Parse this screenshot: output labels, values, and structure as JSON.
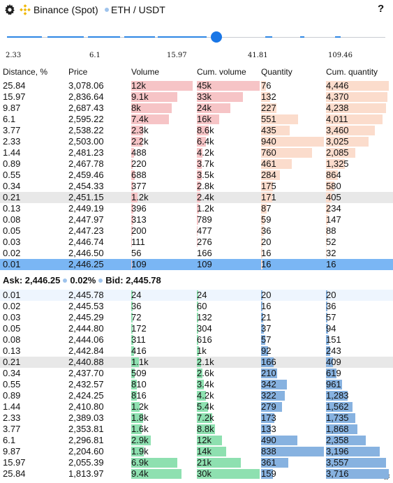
{
  "header": {
    "exchange": "Binance (Spot)",
    "pair": "ETH / USDT",
    "help": "?"
  },
  "slider": {
    "value_fraction": 0.55,
    "ticks": [
      "2.33",
      "6.1",
      "15.97",
      "41.81",
      "109.46"
    ]
  },
  "columns": [
    "Distance, %",
    "Price",
    "Volume",
    "Cum. volume",
    "Quantity",
    "Cum. quantity"
  ],
  "asks": [
    {
      "d": "25.84",
      "p": "3,078.06",
      "v": "12k",
      "cv": "45k",
      "q": "76",
      "cq": "4,446",
      "vf": 0.98,
      "cvf": 1.0,
      "qf": 0.08,
      "cqf": 1.0
    },
    {
      "d": "15.97",
      "p": "2,836.64",
      "v": "9.1k",
      "cv": "33k",
      "q": "132",
      "cq": "4,370",
      "vf": 0.73,
      "cvf": 0.73,
      "qf": 0.14,
      "cqf": 0.98
    },
    {
      "d": "9.87",
      "p": "2,687.43",
      "v": "8k",
      "cv": "24k",
      "q": "227",
      "cq": "4,238",
      "vf": 0.64,
      "cvf": 0.53,
      "qf": 0.24,
      "cqf": 0.95
    },
    {
      "d": "6.1",
      "p": "2,595.22",
      "v": "7.4k",
      "cv": "16k",
      "q": "551",
      "cq": "4,011",
      "vf": 0.6,
      "cvf": 0.36,
      "qf": 0.59,
      "cqf": 0.9
    },
    {
      "d": "3.77",
      "p": "2,538.22",
      "v": "2.3k",
      "cv": "8.6k",
      "q": "435",
      "cq": "3,460",
      "vf": 0.19,
      "cvf": 0.19,
      "qf": 0.46,
      "cqf": 0.78
    },
    {
      "d": "2.33",
      "p": "2,503.00",
      "v": "2.2k",
      "cv": "6.4k",
      "q": "940",
      "cq": "3,025",
      "vf": 0.18,
      "cvf": 0.14,
      "qf": 1.0,
      "cqf": 0.68
    },
    {
      "d": "1.44",
      "p": "2,481.23",
      "v": "488",
      "cv": "4.2k",
      "q": "760",
      "cq": "2,085",
      "vf": 0.04,
      "cvf": 0.09,
      "qf": 0.81,
      "cqf": 0.47
    },
    {
      "d": "0.89",
      "p": "2,467.78",
      "v": "220",
      "cv": "3.7k",
      "q": "461",
      "cq": "1,325",
      "vf": 0.02,
      "cvf": 0.08,
      "qf": 0.49,
      "cqf": 0.3
    },
    {
      "d": "0.55",
      "p": "2,459.46",
      "v": "688",
      "cv": "3.5k",
      "q": "284",
      "cq": "864",
      "vf": 0.06,
      "cvf": 0.08,
      "qf": 0.3,
      "cqf": 0.19
    },
    {
      "d": "0.34",
      "p": "2,454.33",
      "v": "377",
      "cv": "2.8k",
      "q": "175",
      "cq": "580",
      "vf": 0.03,
      "cvf": 0.06,
      "qf": 0.19,
      "cqf": 0.13
    },
    {
      "d": "0.21",
      "p": "2,451.15",
      "v": "1.2k",
      "cv": "2.4k",
      "q": "171",
      "cq": "405",
      "vf": 0.1,
      "cvf": 0.05,
      "qf": 0.18,
      "cqf": 0.09,
      "hl": true
    },
    {
      "d": "0.13",
      "p": "2,449.19",
      "v": "396",
      "cv": "1.2k",
      "q": "87",
      "cq": "234",
      "vf": 0.03,
      "cvf": 0.03,
      "qf": 0.09,
      "cqf": 0.05
    },
    {
      "d": "0.08",
      "p": "2,447.97",
      "v": "313",
      "cv": "789",
      "q": "59",
      "cq": "147",
      "vf": 0.03,
      "cvf": 0.02,
      "qf": 0.06,
      "cqf": 0.03
    },
    {
      "d": "0.05",
      "p": "2,447.23",
      "v": "200",
      "cv": "477",
      "q": "36",
      "cq": "88",
      "vf": 0.02,
      "cvf": 0.01,
      "qf": 0.04,
      "cqf": 0.02
    },
    {
      "d": "0.03",
      "p": "2,446.74",
      "v": "111",
      "cv": "276",
      "q": "20",
      "cq": "52",
      "vf": 0.01,
      "cvf": 0.01,
      "qf": 0.02,
      "cqf": 0.01
    },
    {
      "d": "0.02",
      "p": "2,446.50",
      "v": "56",
      "cv": "166",
      "q": "16",
      "cq": "32",
      "vf": 0.0,
      "cvf": 0.0,
      "qf": 0.02,
      "cqf": 0.01
    },
    {
      "d": "0.01",
      "p": "2,446.25",
      "v": "109",
      "cv": "109",
      "q": "16",
      "cq": "16",
      "vf": 0.01,
      "cvf": 0.0,
      "qf": 0.02,
      "cqf": 0.0,
      "sel": true
    }
  ],
  "spread": {
    "ask_label": "Ask: 2,446.25",
    "pct": "0.02%",
    "bid_label": "Bid: 2,445.78"
  },
  "bids": [
    {
      "d": "0.01",
      "p": "2,445.78",
      "v": "24",
      "cv": "24",
      "q": "20",
      "cq": "20",
      "vf": 0.0,
      "cvf": 0.0,
      "qf": 0.02,
      "cqf": 0.01,
      "first": true
    },
    {
      "d": "0.02",
      "p": "2,445.53",
      "v": "36",
      "cv": "60",
      "q": "16",
      "cq": "36",
      "vf": 0.0,
      "cvf": 0.0,
      "qf": 0.02,
      "cqf": 0.01
    },
    {
      "d": "0.03",
      "p": "2,445.29",
      "v": "72",
      "cv": "132",
      "q": "21",
      "cq": "57",
      "vf": 0.01,
      "cvf": 0.0,
      "qf": 0.03,
      "cqf": 0.02
    },
    {
      "d": "0.05",
      "p": "2,444.80",
      "v": "172",
      "cv": "304",
      "q": "37",
      "cq": "94",
      "vf": 0.02,
      "cvf": 0.01,
      "qf": 0.04,
      "cqf": 0.03
    },
    {
      "d": "0.08",
      "p": "2,444.06",
      "v": "311",
      "cv": "616",
      "q": "57",
      "cq": "151",
      "vf": 0.03,
      "cvf": 0.02,
      "qf": 0.07,
      "cqf": 0.04
    },
    {
      "d": "0.13",
      "p": "2,442.84",
      "v": "416",
      "cv": "1k",
      "q": "92",
      "cq": "243",
      "vf": 0.04,
      "cvf": 0.03,
      "qf": 0.11,
      "cqf": 0.07
    },
    {
      "d": "0.21",
      "p": "2,440.88",
      "v": "1.1k",
      "cv": "2.1k",
      "q": "166",
      "cq": "409",
      "vf": 0.12,
      "cvf": 0.07,
      "qf": 0.2,
      "cqf": 0.11,
      "hl": true
    },
    {
      "d": "0.34",
      "p": "2,437.70",
      "v": "509",
      "cv": "2.6k",
      "q": "210",
      "cq": "619",
      "vf": 0.05,
      "cvf": 0.09,
      "qf": 0.25,
      "cqf": 0.17
    },
    {
      "d": "0.55",
      "p": "2,432.57",
      "v": "810",
      "cv": "3.4k",
      "q": "342",
      "cq": "961",
      "vf": 0.09,
      "cvf": 0.11,
      "qf": 0.41,
      "cqf": 0.26
    },
    {
      "d": "0.89",
      "p": "2,424.25",
      "v": "816",
      "cv": "4.2k",
      "q": "322",
      "cq": "1,283",
      "vf": 0.09,
      "cvf": 0.14,
      "qf": 0.38,
      "cqf": 0.35
    },
    {
      "d": "1.44",
      "p": "2,410.80",
      "v": "1.2k",
      "cv": "5.4k",
      "q": "279",
      "cq": "1,562",
      "vf": 0.13,
      "cvf": 0.18,
      "qf": 0.33,
      "cqf": 0.42
    },
    {
      "d": "2.33",
      "p": "2,389.03",
      "v": "1.8k",
      "cv": "7.2k",
      "q": "173",
      "cq": "1,735",
      "vf": 0.19,
      "cvf": 0.24,
      "qf": 0.21,
      "cqf": 0.47
    },
    {
      "d": "3.77",
      "p": "2,353.81",
      "v": "1.6k",
      "cv": "8.8k",
      "q": "133",
      "cq": "1,868",
      "vf": 0.17,
      "cvf": 0.29,
      "qf": 0.16,
      "cqf": 0.5
    },
    {
      "d": "6.1",
      "p": "2,296.81",
      "v": "2.9k",
      "cv": "12k",
      "q": "490",
      "cq": "2,358",
      "vf": 0.31,
      "cvf": 0.4,
      "qf": 0.58,
      "cqf": 0.63
    },
    {
      "d": "9.87",
      "p": "2,204.60",
      "v": "1.9k",
      "cv": "14k",
      "q": "838",
      "cq": "3,196",
      "vf": 0.2,
      "cvf": 0.47,
      "qf": 1.0,
      "cqf": 0.86
    },
    {
      "d": "15.97",
      "p": "2,055.39",
      "v": "6.9k",
      "cv": "21k",
      "q": "361",
      "cq": "3,557",
      "vf": 0.73,
      "cvf": 0.7,
      "qf": 0.43,
      "cqf": 0.96
    },
    {
      "d": "25.84",
      "p": "1,813.97",
      "v": "9.4k",
      "cv": "30k",
      "q": "159",
      "cq": "3,716",
      "vf": 0.8,
      "cvf": 1.0,
      "qf": 0.19,
      "cqf": 1.0
    }
  ]
}
